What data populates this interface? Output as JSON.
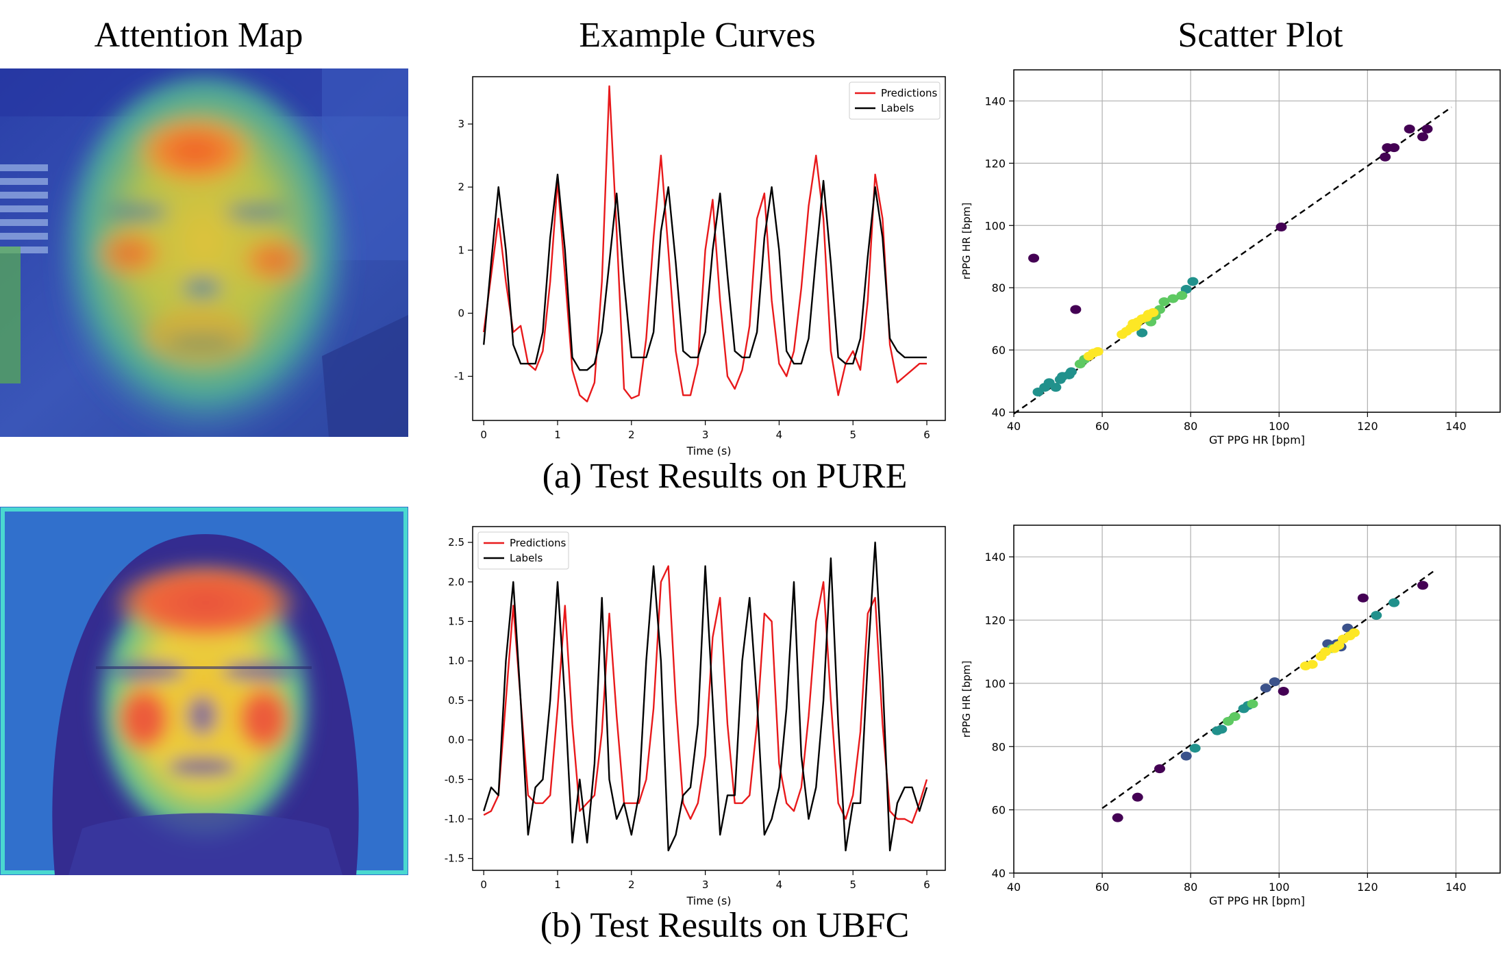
{
  "column_titles": {
    "attention": "Attention Map",
    "curves": "Example Curves",
    "scatter": "Scatter Plot"
  },
  "captions": {
    "pure": "(a) Test Results on PURE",
    "ubfc": "(b) Test Results on UBFC"
  },
  "colors": {
    "predictions": "#e8191b",
    "labels": "#000000",
    "fit_line": "#000000",
    "viridis": [
      "#440154",
      "#3b528b",
      "#21918c",
      "#5ec962",
      "#fde725"
    ]
  },
  "chart_data": [
    {
      "type": "line",
      "id": "pure_curves",
      "xlabel": "Time (s)",
      "ylabel": "",
      "xlim": [
        -0.15,
        6.25
      ],
      "ylim": [
        -1.7,
        3.75
      ],
      "xticks": [
        0,
        1,
        2,
        3,
        4,
        5,
        6
      ],
      "yticks": [
        -1,
        0,
        1,
        2,
        3
      ],
      "legend": "top-right",
      "grid": false,
      "series": [
        {
          "name": "Predictions",
          "color": "#e8191b",
          "x": [
            0,
            0.1,
            0.2,
            0.3,
            0.4,
            0.5,
            0.6,
            0.7,
            0.8,
            0.9,
            1.0,
            1.1,
            1.2,
            1.3,
            1.4,
            1.5,
            1.6,
            1.7,
            1.8,
            1.9,
            2.0,
            2.1,
            2.2,
            2.3,
            2.4,
            2.5,
            2.6,
            2.7,
            2.8,
            2.9,
            3.0,
            3.1,
            3.2,
            3.3,
            3.4,
            3.5,
            3.6,
            3.7,
            3.8,
            3.9,
            4.0,
            4.1,
            4.2,
            4.3,
            4.4,
            4.5,
            4.6,
            4.7,
            4.8,
            4.9,
            5.0,
            5.1,
            5.2,
            5.3,
            5.4,
            5.5,
            5.6,
            5.7,
            5.8,
            5.9,
            6.0
          ],
          "y": [
            -0.3,
            0.6,
            1.5,
            0.5,
            -0.3,
            -0.2,
            -0.8,
            -0.9,
            -0.6,
            0.5,
            2.1,
            0.6,
            -0.9,
            -1.3,
            -1.4,
            -1.1,
            0.5,
            3.6,
            1.3,
            -1.2,
            -1.35,
            -1.3,
            -0.4,
            1.2,
            2.5,
            1.0,
            -0.6,
            -1.3,
            -1.3,
            -0.8,
            1.0,
            1.8,
            0.2,
            -1.0,
            -1.2,
            -0.9,
            -0.2,
            1.5,
            1.9,
            0.2,
            -0.8,
            -1.0,
            -0.6,
            0.4,
            1.7,
            2.5,
            1.5,
            -0.6,
            -1.3,
            -0.8,
            -0.6,
            -0.9,
            0.2,
            2.2,
            1.5,
            -0.5,
            -1.1,
            -1.0,
            -0.9,
            -0.8,
            -0.8
          ]
        },
        {
          "name": "Labels",
          "color": "#000000",
          "x": [
            0,
            0.1,
            0.2,
            0.3,
            0.4,
            0.5,
            0.6,
            0.7,
            0.8,
            0.9,
            1.0,
            1.1,
            1.2,
            1.3,
            1.4,
            1.5,
            1.6,
            1.7,
            1.8,
            1.9,
            2.0,
            2.1,
            2.2,
            2.3,
            2.4,
            2.5,
            2.6,
            2.7,
            2.8,
            2.9,
            3.0,
            3.1,
            3.2,
            3.3,
            3.4,
            3.5,
            3.6,
            3.7,
            3.8,
            3.9,
            4.0,
            4.1,
            4.2,
            4.3,
            4.4,
            4.5,
            4.6,
            4.7,
            4.8,
            4.9,
            5.0,
            5.1,
            5.2,
            5.3,
            5.4,
            5.5,
            5.6,
            5.7,
            5.8,
            5.9,
            6.0
          ],
          "y": [
            -0.5,
            0.8,
            2.0,
            1.0,
            -0.5,
            -0.8,
            -0.8,
            -0.8,
            -0.3,
            1.2,
            2.2,
            1.0,
            -0.7,
            -0.9,
            -0.9,
            -0.8,
            -0.3,
            0.8,
            1.9,
            0.5,
            -0.7,
            -0.7,
            -0.7,
            -0.3,
            1.3,
            2.0,
            0.8,
            -0.6,
            -0.7,
            -0.7,
            -0.3,
            1.0,
            1.9,
            0.6,
            -0.6,
            -0.7,
            -0.7,
            -0.3,
            1.2,
            2.0,
            1.0,
            -0.6,
            -0.8,
            -0.8,
            -0.4,
            0.9,
            2.1,
            0.8,
            -0.7,
            -0.8,
            -0.8,
            -0.4,
            0.9,
            2.0,
            1.2,
            -0.4,
            -0.6,
            -0.7,
            -0.7,
            -0.7,
            -0.7
          ]
        }
      ]
    },
    {
      "type": "scatter",
      "id": "pure_scatter",
      "xlabel": "GT PPG HR [bpm]",
      "ylabel": "rPPG HR [bpm]",
      "xlim": [
        40,
        150
      ],
      "ylim": [
        40,
        150
      ],
      "xticks": [
        40,
        60,
        80,
        100,
        120,
        140
      ],
      "yticks": [
        40,
        60,
        80,
        100,
        120,
        140
      ],
      "grid": true,
      "fit_line": [
        [
          40,
          39.5
        ],
        [
          139,
          138
        ]
      ],
      "points": [
        [
          44.5,
          89.5,
          0
        ],
        [
          54,
          73,
          0
        ],
        [
          100.5,
          99.5,
          0
        ],
        [
          124,
          122,
          0
        ],
        [
          124.5,
          125,
          0
        ],
        [
          126,
          125,
          0
        ],
        [
          129.5,
          131,
          0
        ],
        [
          132.5,
          128.5,
          0
        ],
        [
          133.5,
          131,
          0
        ],
        [
          45.5,
          46.5,
          2
        ],
        [
          47,
          48,
          2
        ],
        [
          48,
          49.5,
          2
        ],
        [
          49.5,
          48,
          2
        ],
        [
          50.5,
          50.5,
          2
        ],
        [
          51,
          51.5,
          2
        ],
        [
          52.5,
          52,
          2
        ],
        [
          53,
          53,
          2
        ],
        [
          69,
          65.5,
          2
        ],
        [
          80.5,
          82,
          2
        ],
        [
          79,
          79.5,
          2
        ],
        [
          55,
          55.5,
          3
        ],
        [
          56,
          57,
          3
        ],
        [
          73,
          73,
          3
        ],
        [
          74,
          75.5,
          3
        ],
        [
          76,
          76.5,
          3
        ],
        [
          78,
          77.5,
          3
        ],
        [
          71,
          69,
          3
        ],
        [
          72,
          71,
          3
        ],
        [
          57,
          58,
          4
        ],
        [
          58,
          59,
          4
        ],
        [
          59,
          59.5,
          4
        ],
        [
          64.5,
          65,
          4
        ],
        [
          65.5,
          66,
          4
        ],
        [
          66.5,
          67,
          4
        ],
        [
          67.5,
          67.5,
          4
        ],
        [
          68,
          69,
          4
        ],
        [
          69,
          70,
          4
        ],
        [
          70,
          70.5,
          4
        ],
        [
          70.5,
          71.5,
          4
        ],
        [
          71.5,
          72,
          4
        ],
        [
          67,
          68.5,
          4
        ]
      ]
    },
    {
      "type": "line",
      "id": "ubfc_curves",
      "xlabel": "Time (s)",
      "ylabel": "",
      "xlim": [
        -0.15,
        6.25
      ],
      "ylim": [
        -1.65,
        2.7
      ],
      "xticks": [
        0,
        1,
        2,
        3,
        4,
        5,
        6
      ],
      "yticks": [
        -1.5,
        -1.0,
        -0.5,
        0.0,
        0.5,
        1.0,
        1.5,
        2.0,
        2.5
      ],
      "legend": "top-left",
      "grid": false,
      "series": [
        {
          "name": "Predictions",
          "color": "#e8191b",
          "x": [
            0,
            0.1,
            0.2,
            0.3,
            0.4,
            0.5,
            0.6,
            0.7,
            0.8,
            0.9,
            1.0,
            1.1,
            1.2,
            1.3,
            1.4,
            1.5,
            1.6,
            1.7,
            1.8,
            1.9,
            2.0,
            2.1,
            2.2,
            2.3,
            2.4,
            2.5,
            2.6,
            2.7,
            2.8,
            2.9,
            3.0,
            3.1,
            3.2,
            3.3,
            3.4,
            3.5,
            3.6,
            3.7,
            3.8,
            3.9,
            4.0,
            4.1,
            4.2,
            4.3,
            4.4,
            4.5,
            4.6,
            4.7,
            4.8,
            4.9,
            5.0,
            5.1,
            5.2,
            5.3,
            5.4,
            5.5,
            5.6,
            5.7,
            5.8,
            5.9,
            6.0
          ],
          "y": [
            -0.95,
            -0.9,
            -0.7,
            0.5,
            1.7,
            0.5,
            -0.7,
            -0.8,
            -0.8,
            -0.7,
            0.4,
            1.7,
            0.2,
            -0.9,
            -0.8,
            -0.7,
            0.1,
            1.6,
            0.3,
            -0.8,
            -0.8,
            -0.8,
            -0.5,
            0.4,
            2.0,
            2.2,
            0.5,
            -0.8,
            -1.0,
            -0.8,
            -0.2,
            1.3,
            1.8,
            0.2,
            -0.8,
            -0.8,
            -0.7,
            0.2,
            1.6,
            1.5,
            -0.3,
            -0.8,
            -0.9,
            -0.6,
            0.3,
            1.5,
            2.0,
            0.5,
            -0.8,
            -1.0,
            -0.7,
            0.1,
            1.6,
            1.8,
            0.2,
            -0.9,
            -1.0,
            -1.0,
            -1.05,
            -0.8,
            -0.5
          ]
        },
        {
          "name": "Labels",
          "color": "#000000",
          "x": [
            0,
            0.1,
            0.2,
            0.3,
            0.4,
            0.5,
            0.6,
            0.7,
            0.8,
            0.9,
            1.0,
            1.1,
            1.2,
            1.3,
            1.4,
            1.5,
            1.6,
            1.7,
            1.8,
            1.9,
            2.0,
            2.1,
            2.2,
            2.3,
            2.4,
            2.5,
            2.6,
            2.7,
            2.8,
            2.9,
            3.0,
            3.1,
            3.2,
            3.3,
            3.4,
            3.5,
            3.6,
            3.7,
            3.8,
            3.9,
            4.0,
            4.1,
            4.2,
            4.3,
            4.4,
            4.5,
            4.6,
            4.7,
            4.8,
            4.9,
            5.0,
            5.1,
            5.2,
            5.3,
            5.4,
            5.5,
            5.6,
            5.7,
            5.8,
            5.9,
            6.0
          ],
          "y": [
            -0.9,
            -0.6,
            -0.7,
            1.0,
            2.0,
            0.5,
            -1.2,
            -0.6,
            -0.5,
            0.5,
            2.0,
            0.5,
            -1.3,
            -0.5,
            -1.3,
            -0.3,
            1.8,
            -0.5,
            -1.0,
            -0.8,
            -1.2,
            -0.7,
            1.0,
            2.2,
            1.0,
            -1.4,
            -1.2,
            -0.7,
            -0.6,
            0.2,
            2.2,
            0.5,
            -1.2,
            -0.7,
            -0.7,
            1.0,
            1.8,
            0.5,
            -1.2,
            -1.0,
            -0.6,
            0.4,
            2.0,
            -0.2,
            -1.0,
            -0.6,
            0.5,
            2.3,
            0.2,
            -1.4,
            -0.8,
            -0.8,
            1.0,
            2.5,
            0.8,
            -1.4,
            -0.8,
            -0.6,
            -0.6,
            -0.9,
            -0.6
          ]
        }
      ]
    },
    {
      "type": "scatter",
      "id": "ubfc_scatter",
      "xlabel": "GT PPG HR [bpm]",
      "ylabel": "rPPG HR [bpm]",
      "xlim": [
        40,
        150
      ],
      "ylim": [
        40,
        150
      ],
      "xticks": [
        40,
        60,
        80,
        100,
        120,
        140
      ],
      "yticks": [
        40,
        60,
        80,
        100,
        120,
        140
      ],
      "grid": true,
      "fit_line": [
        [
          60,
          60.5
        ],
        [
          135,
          135.5
        ]
      ],
      "points": [
        [
          63.5,
          57.5,
          0
        ],
        [
          68,
          64,
          0
        ],
        [
          73,
          73,
          0
        ],
        [
          101,
          97.5,
          0
        ],
        [
          119,
          127,
          0
        ],
        [
          132.5,
          131,
          0
        ],
        [
          79,
          77,
          1
        ],
        [
          97,
          98.5,
          1
        ],
        [
          99,
          100.5,
          1
        ],
        [
          111,
          112.5,
          1
        ],
        [
          113,
          112.5,
          1
        ],
        [
          114,
          111.5,
          1
        ],
        [
          115.5,
          117.5,
          1
        ],
        [
          81,
          79.5,
          2
        ],
        [
          86,
          85,
          2
        ],
        [
          87,
          85.5,
          2
        ],
        [
          92,
          92,
          2
        ],
        [
          93,
          93,
          2
        ],
        [
          122,
          121.5,
          2
        ],
        [
          126,
          125.5,
          2
        ],
        [
          88.5,
          88,
          3
        ],
        [
          90,
          89.5,
          3
        ],
        [
          94,
          93.5,
          3
        ],
        [
          112,
          111,
          3
        ],
        [
          106,
          105.5,
          4
        ],
        [
          107.5,
          106,
          4
        ],
        [
          109.5,
          108.5,
          4
        ],
        [
          110.5,
          110,
          4
        ],
        [
          112.5,
          111,
          4
        ],
        [
          113.5,
          112,
          4
        ],
        [
          114.5,
          114,
          4
        ],
        [
          116,
          115,
          4
        ],
        [
          117,
          116,
          4
        ]
      ]
    }
  ]
}
